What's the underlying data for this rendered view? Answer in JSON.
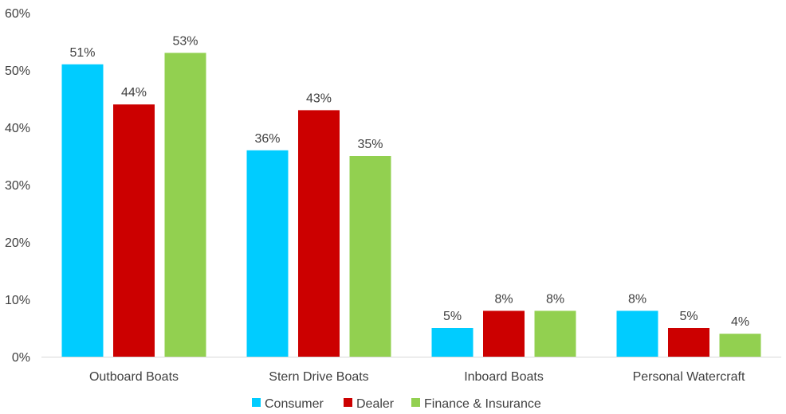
{
  "chart_data": {
    "type": "bar",
    "categories": [
      "Outboard Boats",
      "Stern Drive Boats",
      "Inboard Boats",
      "Personal Watercraft"
    ],
    "series": [
      {
        "name": "Consumer",
        "color": "#00CCFF",
        "values": [
          51,
          36,
          5,
          8
        ],
        "labels": [
          "51%",
          "36%",
          "5%",
          "8%"
        ]
      },
      {
        "name": "Dealer",
        "color": "#CC0000",
        "values": [
          44,
          43,
          8,
          5
        ],
        "labels": [
          "44%",
          "43%",
          "8%",
          "5%"
        ]
      },
      {
        "name": "Finance & Insurance",
        "color": "#92D050",
        "values": [
          53,
          35,
          8,
          4
        ],
        "labels": [
          "53%",
          "35%",
          "8%",
          "4%"
        ]
      }
    ],
    "y_ticks": [
      "0%",
      "10%",
      "20%",
      "30%",
      "40%",
      "50%",
      "60%"
    ],
    "ylim": [
      0,
      60
    ],
    "legend_position": "bottom",
    "grid": false
  }
}
